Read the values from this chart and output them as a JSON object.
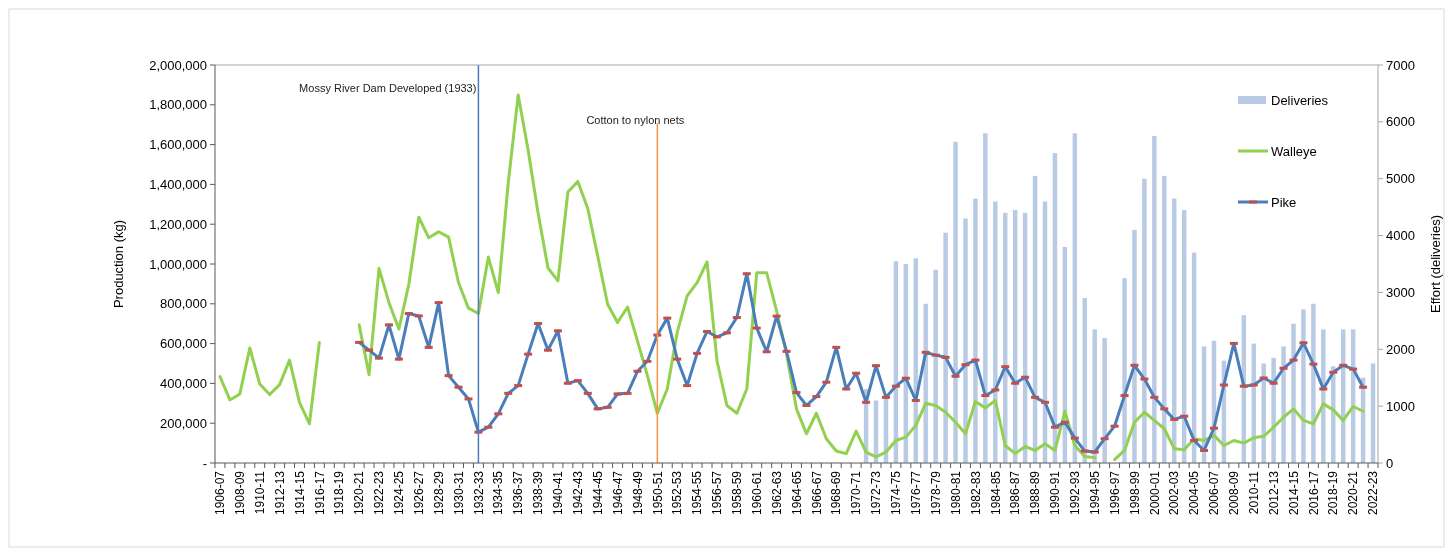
{
  "chart_data": {
    "type": "line",
    "ylabel": "Production (kg)",
    "y2label": "Effort (deliveries)",
    "categories": [
      "1906-07",
      null,
      "1908-09",
      null,
      "1910-11",
      null,
      "1912-13",
      null,
      "1914-15",
      null,
      "1916-17",
      null,
      "1918-19",
      null,
      "1920-21",
      null,
      "1922-23",
      null,
      "1924-25",
      null,
      "1926-27",
      null,
      "1928-29",
      null,
      "1930-31",
      null,
      "1932-33",
      null,
      "1934-35",
      null,
      "1936-37",
      null,
      "1938-39",
      null,
      "1940-41",
      null,
      "1942-43",
      null,
      "1944-45",
      null,
      "1946-47",
      null,
      "1948-49",
      null,
      "1950-51",
      null,
      "1952-53",
      null,
      "1954-55",
      null,
      "1956-57",
      null,
      "1958-59",
      null,
      "1960-61",
      null,
      "1962-63",
      null,
      "1964-65",
      null,
      "1966-67",
      null,
      "1968-69",
      null,
      "1970-71",
      null,
      "1972-73",
      null,
      "1974-75",
      null,
      "1976-77",
      null,
      "1978-79",
      null,
      "1980-81",
      null,
      "1982-83",
      null,
      "1984-85",
      null,
      "1986-87",
      null,
      "1988-89",
      null,
      "1990-91",
      null,
      "1992-93",
      null,
      "1994-95",
      null,
      "1996-97",
      null,
      "1998-99",
      null,
      "2000-01",
      null,
      "2002-03",
      null,
      "2004-05",
      null,
      "2006-07",
      null,
      "2008-09",
      null,
      "2010-11",
      null,
      "2012-13",
      null,
      "2014-15",
      null,
      "2016-17",
      null,
      "2018-19",
      null,
      "2020-21",
      null,
      "2022-23"
    ],
    "series": [
      {
        "name": "Deliveries",
        "type": "bar",
        "axis": "y2",
        "color": "#b9cae4",
        "values": [
          null,
          null,
          null,
          null,
          null,
          null,
          null,
          null,
          null,
          null,
          null,
          null,
          null,
          null,
          null,
          null,
          null,
          null,
          null,
          null,
          null,
          null,
          null,
          null,
          null,
          null,
          null,
          null,
          null,
          null,
          null,
          null,
          null,
          null,
          null,
          null,
          null,
          null,
          null,
          null,
          null,
          null,
          null,
          null,
          null,
          null,
          null,
          null,
          null,
          null,
          null,
          null,
          null,
          null,
          null,
          null,
          null,
          null,
          null,
          null,
          null,
          null,
          null,
          null,
          null,
          1300,
          1100,
          1150,
          3550,
          3500,
          3600,
          2800,
          3400,
          4050,
          5650,
          4300,
          4650,
          5800,
          4600,
          4400,
          4450,
          4400,
          5050,
          4600,
          5450,
          3800,
          5800,
          2900,
          2350,
          2200,
          null,
          3250,
          4100,
          5000,
          5750,
          5050,
          4650,
          4450,
          3700,
          2050,
          2150,
          1800,
          null,
          2600,
          2100,
          1750,
          1850,
          2050,
          2450,
          2700,
          2800,
          2350,
          1700,
          2350,
          2350,
          1500,
          1750
        ]
      },
      {
        "name": "Walleye",
        "color": "#92d050",
        "values": [
          434000,
          317000,
          347000,
          578000,
          397000,
          344000,
          394000,
          517000,
          305000,
          197000,
          606000,
          null,
          null,
          null,
          694000,
          444000,
          978000,
          806000,
          673000,
          898000,
          1235000,
          1132000,
          1162000,
          1135000,
          906000,
          778000,
          751000,
          1035000,
          856000,
          1407000,
          1849000,
          1573000,
          1256000,
          980000,
          915000,
          1362000,
          1415000,
          1279000,
          1040000,
          798000,
          706000,
          784000,
          614000,
          439000,
          250000,
          372000,
          656000,
          840000,
          906000,
          1011000,
          514000,
          289000,
          250000,
          372000,
          956000,
          956000,
          764000,
          547000,
          272000,
          147000,
          250000,
          122000,
          60000,
          47000,
          160000,
          55000,
          30000,
          55000,
          113000,
          130000,
          189000,
          300000,
          289000,
          255000,
          205000,
          147000,
          309000,
          277000,
          314000,
          88000,
          47000,
          83000,
          63000,
          97000,
          63000,
          260000,
          88000,
          33000,
          27000,
          null,
          17000,
          63000,
          205000,
          255000,
          214000,
          172000,
          72000,
          67000,
          122000,
          113000,
          139000,
          88000,
          113000,
          100000,
          127000,
          134000,
          180000,
          230000,
          272000,
          214000,
          197000,
          297000,
          267000,
          214000,
          284000,
          260000,
          null
        ]
      },
      {
        "name": "Pike",
        "color": "#4a7ebb",
        "marker": "square",
        "values": [
          null,
          null,
          null,
          null,
          null,
          null,
          null,
          null,
          null,
          null,
          null,
          null,
          null,
          null,
          606000,
          567000,
          527000,
          694000,
          522000,
          751000,
          739000,
          581000,
          806000,
          439000,
          381000,
          322000,
          155000,
          180000,
          247000,
          350000,
          389000,
          547000,
          701000,
          567000,
          664000,
          401000,
          414000,
          350000,
          272000,
          280000,
          347000,
          350000,
          461000,
          511000,
          643000,
          728000,
          522000,
          389000,
          551000,
          661000,
          634000,
          654000,
          731000,
          951000,
          678000,
          559000,
          738000,
          561000,
          354000,
          289000,
          334000,
          406000,
          581000,
          372000,
          451000,
          305000,
          489000,
          330000,
          386000,
          426000,
          314000,
          556000,
          542000,
          531000,
          436000,
          494000,
          517000,
          339000,
          367000,
          484000,
          401000,
          431000,
          330000,
          305000,
          180000,
          205000,
          125000,
          60000,
          55000,
          122000,
          185000,
          339000,
          491000,
          422000,
          330000,
          272000,
          219000,
          235000,
          113000,
          63000,
          175000,
          392000,
          601000,
          386000,
          392000,
          427000,
          401000,
          476000,
          517000,
          604000,
          497000,
          372000,
          456000,
          491000,
          472000,
          381000,
          null
        ]
      }
    ],
    "ylim": [
      0,
      2000000
    ],
    "yticks": [
      {
        "value": 0,
        "label": "-"
      },
      {
        "value": 200000,
        "label": "200,000"
      },
      {
        "value": 400000,
        "label": "400,000"
      },
      {
        "value": 600000,
        "label": "600,000"
      },
      {
        "value": 800000,
        "label": "800,000"
      },
      {
        "value": 1000000,
        "label": "1,000,000"
      },
      {
        "value": 1200000,
        "label": "1,200,000"
      },
      {
        "value": 1400000,
        "label": "1,400,000"
      },
      {
        "value": 1600000,
        "label": "1,600,000"
      },
      {
        "value": 1800000,
        "label": "1,800,000"
      },
      {
        "value": 2000000,
        "label": "2,000,000"
      }
    ],
    "y2lim": [
      0,
      7000
    ],
    "y2ticks": [
      0,
      1000,
      2000,
      3000,
      4000,
      5000,
      6000,
      7000
    ],
    "ref_lines": [
      {
        "axis": "x",
        "value": "1932-33",
        "label": "Mossy River Dam Developed (1933)",
        "color": "#4a7ebb"
      },
      {
        "axis": "x",
        "value": "1950-51",
        "label": "Cotton to nylon nets",
        "color": "#f79646"
      }
    ],
    "legend": "top right",
    "grid": false,
    "line_style": "solid"
  }
}
